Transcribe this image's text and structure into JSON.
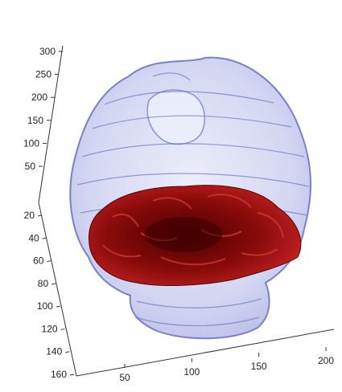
{
  "chart_data": {
    "type": "3d-surface",
    "title": "",
    "xlabel": "",
    "ylabel": "",
    "zlabel": "",
    "grid": false,
    "legend": "none",
    "axes": {
      "z": {
        "ticks": [
          "300",
          "250",
          "200",
          "150",
          "100",
          "50"
        ],
        "range": [
          0,
          300
        ]
      },
      "y": {
        "ticks": [
          "20",
          "40",
          "60",
          "80",
          "100",
          "120",
          "140",
          "160"
        ],
        "range": [
          10,
          165
        ]
      },
      "x": {
        "ticks": [
          "50",
          "100",
          "150",
          "200"
        ],
        "range": [
          0,
          210
        ]
      }
    },
    "series": [
      {
        "surface": "outer",
        "color": "#8d93d6",
        "opacity": 0.5
      },
      {
        "surface": "inner",
        "color": "#8b0a0a",
        "opacity": 1.0
      }
    ]
  }
}
